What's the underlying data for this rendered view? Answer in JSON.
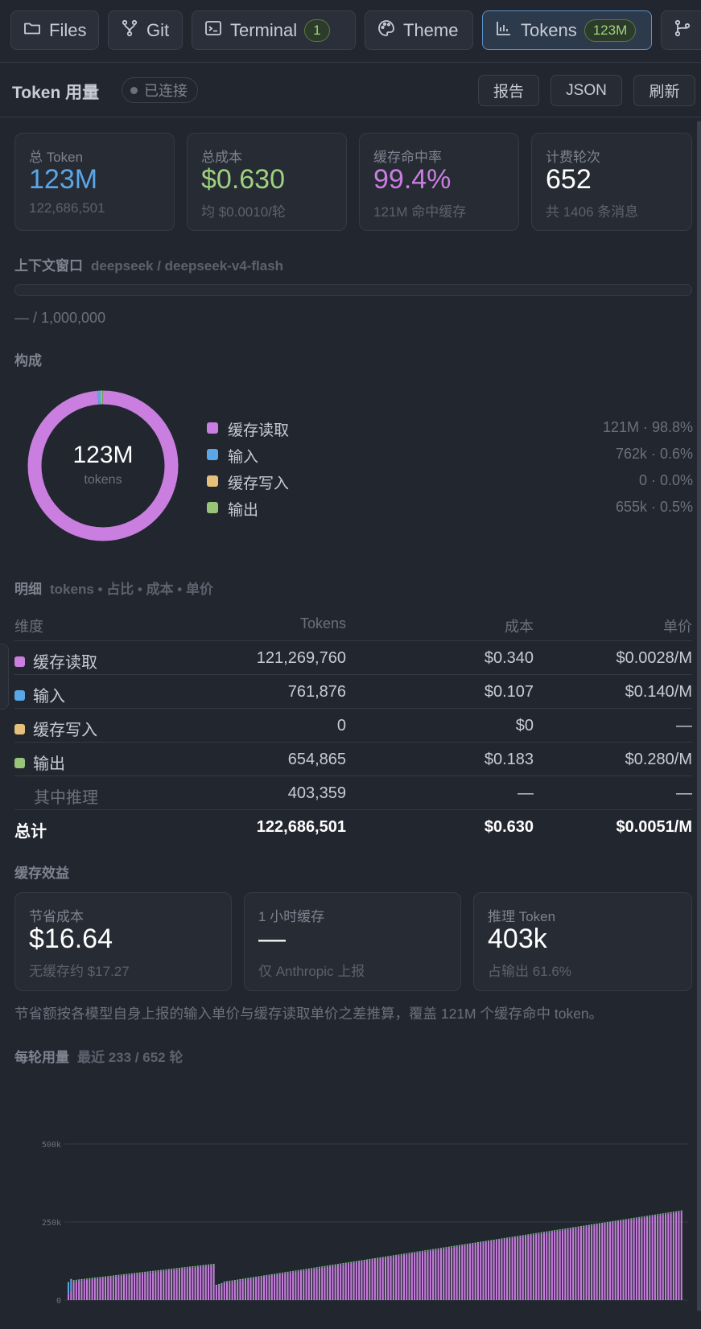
{
  "tabs": [
    {
      "label": "Files",
      "icon": "folder-icon",
      "active": false
    },
    {
      "label": "Git",
      "icon": "git-branch-icon",
      "active": false
    },
    {
      "label": "Terminal",
      "icon": "terminal-icon",
      "badge": "1",
      "active": false
    },
    {
      "label": "Theme",
      "icon": "palette-icon",
      "active": false
    },
    {
      "label": "Tokens",
      "icon": "bar-chart-icon",
      "badge": "123M",
      "active": true
    },
    {
      "label": "",
      "icon": "git-merge-icon",
      "active": false
    }
  ],
  "header": {
    "title": "Token 用量",
    "status": "已连接",
    "buttons": {
      "report": "报告",
      "json": "JSON",
      "refresh": "刷新"
    }
  },
  "summary_cards": [
    {
      "label": "总 Token",
      "value": "123M",
      "sub": "122,686,501",
      "color": "#5aa7e8"
    },
    {
      "label": "总成本",
      "value": "$0.630",
      "sub": "均 $0.0010/轮",
      "color": "#9ed27e"
    },
    {
      "label": "缓存命中率",
      "value": "99.4%",
      "sub": "121M 命中缓存",
      "color": "#c97ee0"
    },
    {
      "label": "计费轮次",
      "value": "652",
      "sub": "共 1406 条消息",
      "color": "#ffffff"
    }
  ],
  "context_window": {
    "title": "上下文窗口",
    "model": "deepseek / deepseek-v4-flash",
    "usage_text": "— / 1,000,000"
  },
  "composition": {
    "title": "构成",
    "center_value": "123M",
    "center_label": "tokens",
    "items": [
      {
        "name": "缓存读取",
        "value": "121M · 98.8%",
        "color": "#c97ee0",
        "share": 0.988
      },
      {
        "name": "输入",
        "value": "762k · 0.6%",
        "color": "#5aa7e8",
        "share": 0.006
      },
      {
        "name": "缓存写入",
        "value": "0 · 0.0%",
        "color": "#e6c07b",
        "share": 0.0
      },
      {
        "name": "输出",
        "value": "655k · 0.5%",
        "color": "#98c379",
        "share": 0.005
      }
    ]
  },
  "breakdown": {
    "title": "明细",
    "subtitle": "tokens • 占比 • 成本 • 单价",
    "columns": [
      "维度",
      "Tokens",
      "成本",
      "单价"
    ],
    "rows": [
      {
        "name": "缓存读取",
        "tokens": "121,269,760",
        "cost": "$0.340",
        "unit": "$0.0028/M",
        "color": "#c97ee0"
      },
      {
        "name": "输入",
        "tokens": "761,876",
        "cost": "$0.107",
        "unit": "$0.140/M",
        "color": "#5aa7e8"
      },
      {
        "name": "缓存写入",
        "tokens": "0",
        "cost": "$0",
        "unit": "—",
        "color": "#e6c07b"
      },
      {
        "name": "输出",
        "tokens": "654,865",
        "cost": "$0.183",
        "unit": "$0.280/M",
        "color": "#98c379"
      }
    ],
    "sub_row": {
      "name": "其中推理",
      "tokens": "403,359",
      "cost": "—",
      "unit": "—"
    },
    "total": {
      "name": "总计",
      "tokens": "122,686,501",
      "cost": "$0.630",
      "unit": "$0.0051/M"
    }
  },
  "cache_benefit": {
    "title": "缓存效益",
    "cards": [
      {
        "label": "节省成本",
        "value": "$16.64",
        "sub": "无缓存约 $17.27"
      },
      {
        "label": "1 小时缓存",
        "value": "—",
        "sub": "仅 Anthropic 上报"
      },
      {
        "label": "推理 Token",
        "value": "403k",
        "sub": "占输出 61.6%"
      }
    ],
    "note": "节省额按各模型自身上报的输入单价与缓存读取单价之差推算，覆盖 121M 个缓存命中 token。"
  },
  "per_round": {
    "title": "每轮用量",
    "subtitle": "最近 233 / 652 轮"
  },
  "chart_data": {
    "type": "bar",
    "title": "每轮用量",
    "ytick_labels": [
      "0",
      "250k",
      "500k"
    ],
    "ylim": [
      0,
      500000
    ],
    "bar_count": 233,
    "grid": true,
    "stacked": true,
    "series": [
      {
        "name": "缓存读取",
        "color": "#c97ee0",
        "segments": [
          {
            "from": 1,
            "to": 2,
            "start": 20000,
            "end": 30000
          },
          {
            "from": 3,
            "to": 56,
            "start": 60000,
            "end": 112000
          },
          {
            "from": 57,
            "to": 59,
            "start": 45000,
            "end": 50000
          },
          {
            "from": 60,
            "to": 233,
            "start": 55000,
            "end": 283000
          }
        ]
      },
      {
        "name": "输入",
        "color": "#5aa7e8",
        "segments": [
          {
            "from": 1,
            "to": 2,
            "start": 35000,
            "end": 35000
          },
          {
            "from": 3,
            "to": 233,
            "start": 1500,
            "end": 1500
          }
        ]
      },
      {
        "name": "输出",
        "color": "#98c379",
        "segments": [
          {
            "from": 1,
            "to": 233,
            "start": 2500,
            "end": 2500
          }
        ]
      }
    ]
  }
}
